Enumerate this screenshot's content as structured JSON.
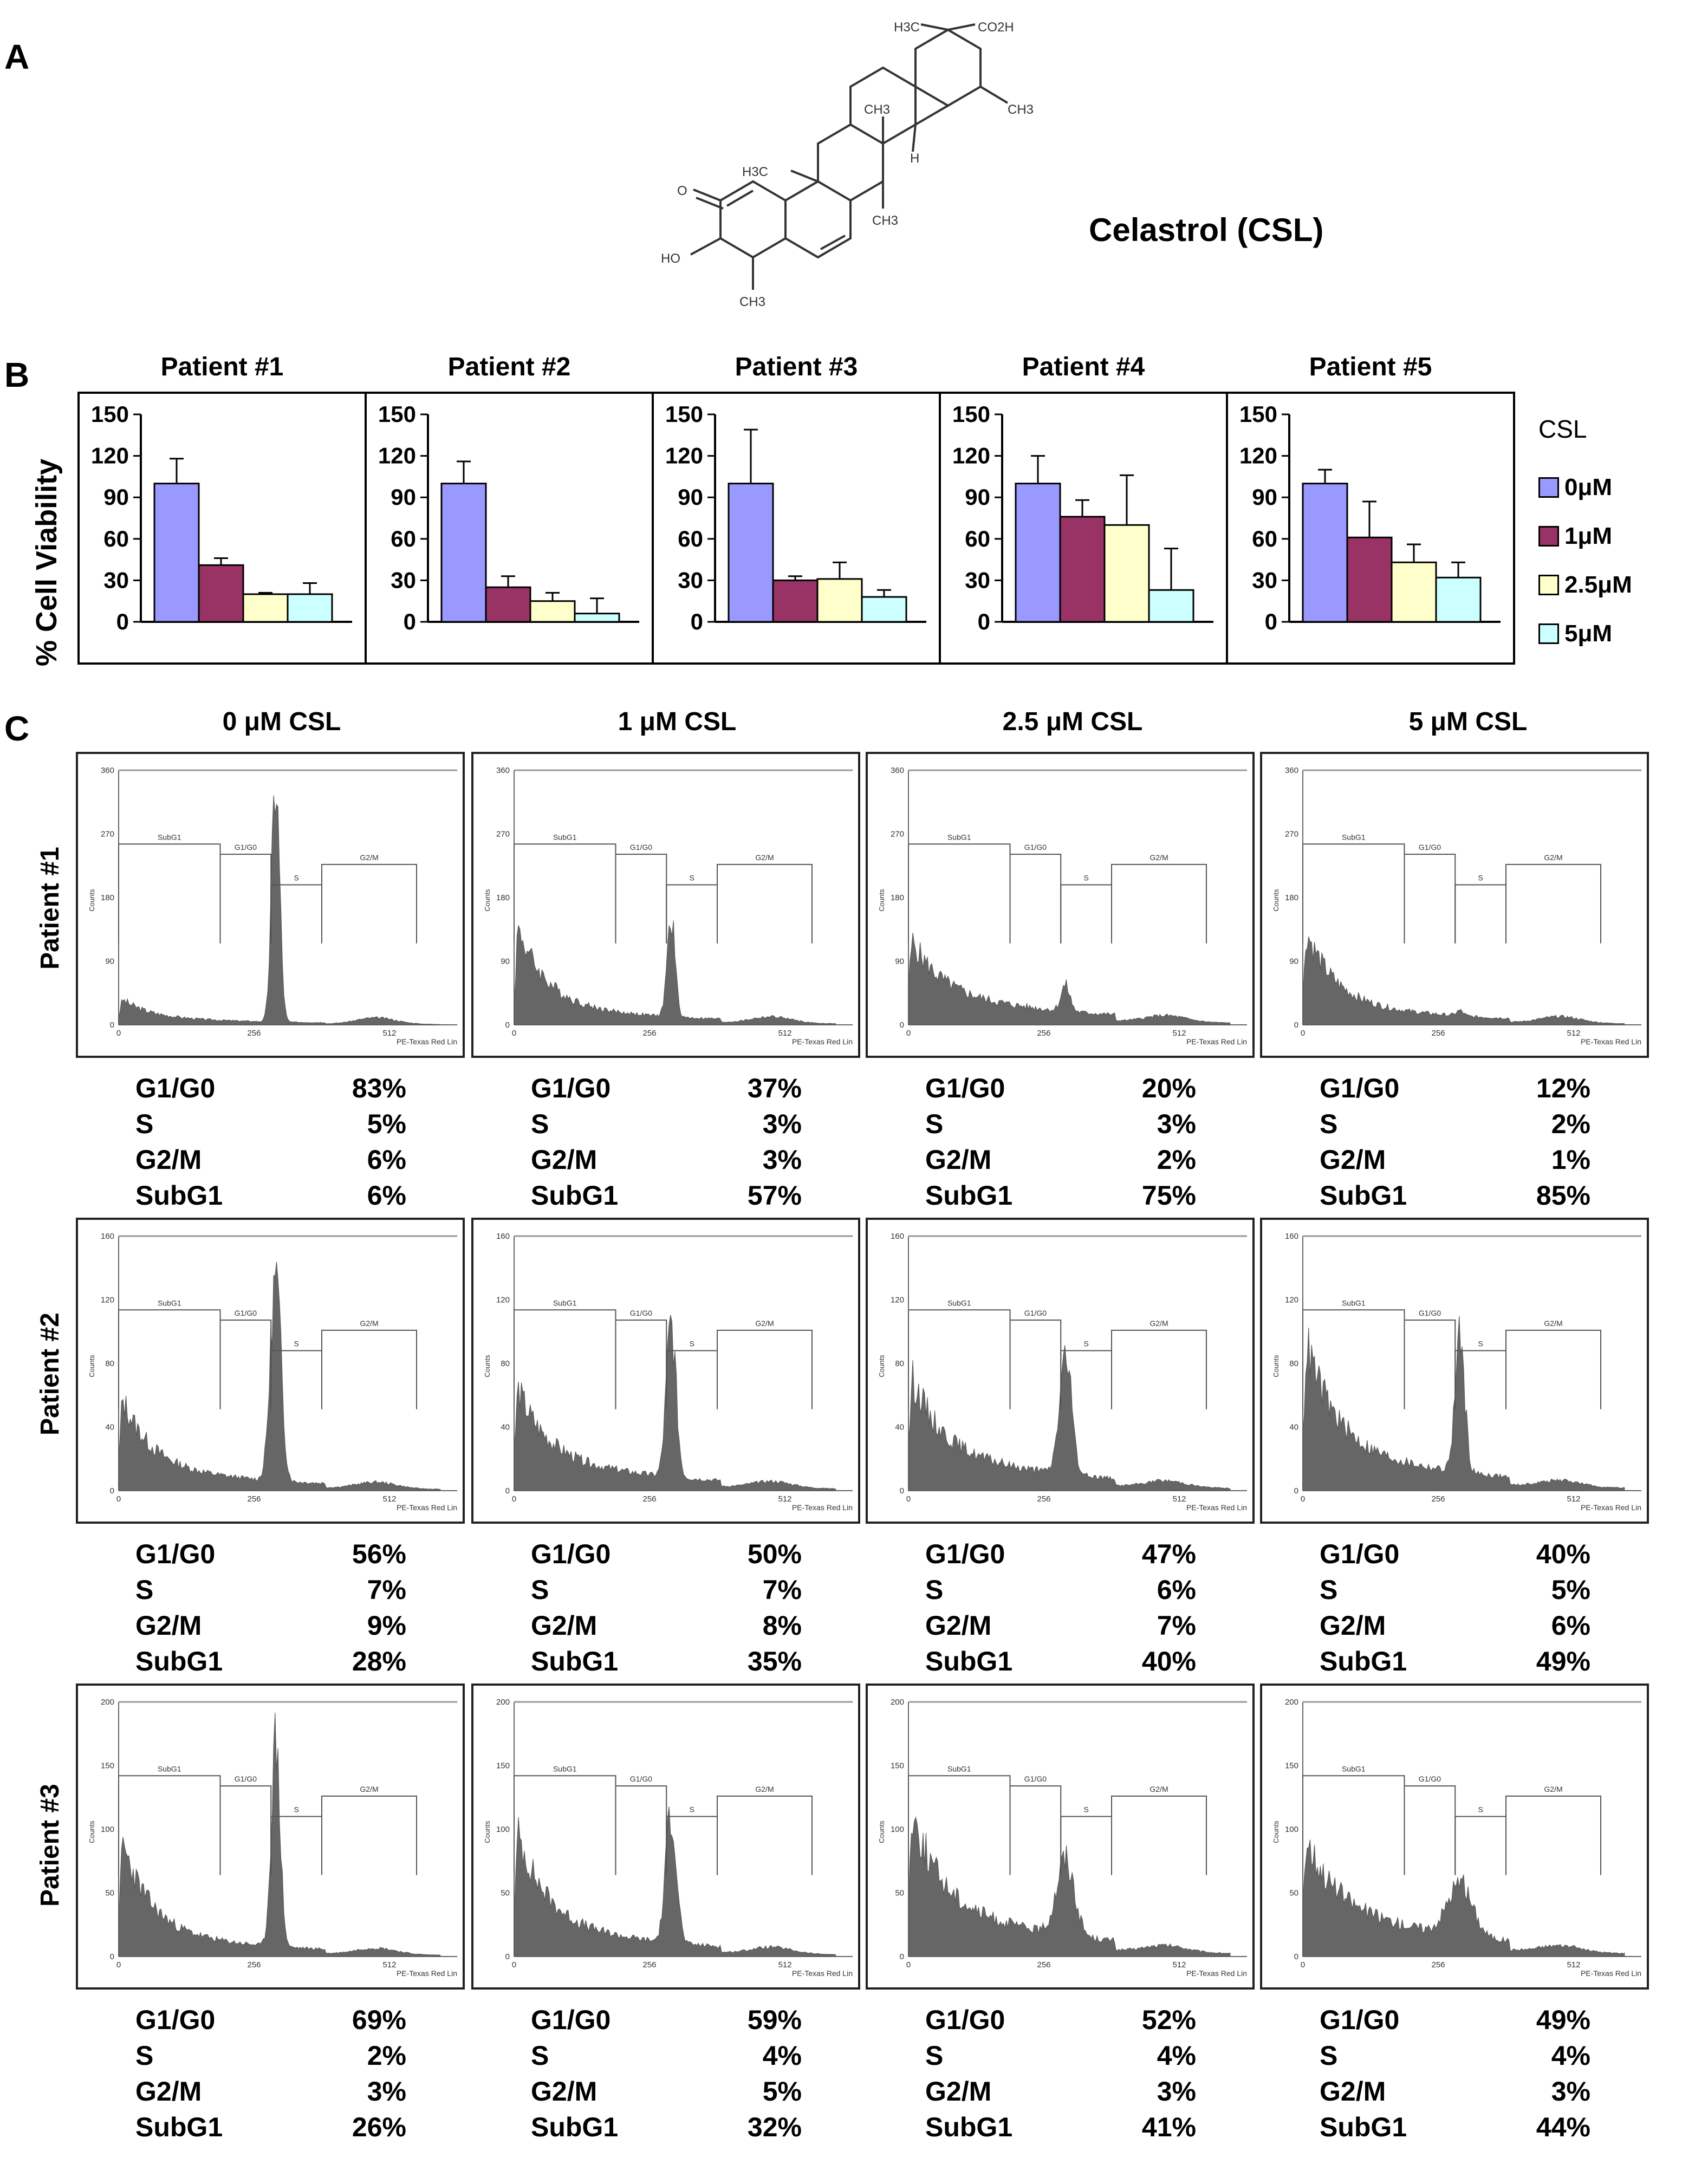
{
  "panels": {
    "a": "A",
    "b": "B",
    "c": "C"
  },
  "molecule": {
    "name": "Celastrol (CSL)",
    "labels": [
      "H3C",
      "CO2H",
      "CH3",
      "H3C",
      "H",
      "CH3",
      "O",
      "HO",
      "CH3",
      "CH3"
    ]
  },
  "viability": {
    "ylabel": "% Cell Viability",
    "legend_title": "CSL",
    "conditions": [
      "0μM",
      "1μM",
      "2.5μM",
      "5μM"
    ],
    "colors": [
      "#9999ff",
      "#993366",
      "#ffffcc",
      "#ccffff"
    ],
    "yticks": [
      "150",
      "120",
      "90",
      "60",
      "30",
      "0"
    ]
  },
  "chart_data": [
    {
      "type": "bar",
      "title": "Patient #1",
      "categories": [
        "0μM",
        "1μM",
        "2.5μM",
        "5μM"
      ],
      "values": [
        100,
        41,
        20,
        20
      ],
      "errors": [
        18,
        5,
        1,
        8
      ],
      "ylim": [
        0,
        150
      ],
      "ylabel": "% Cell Viability"
    },
    {
      "type": "bar",
      "title": "Patient #2",
      "categories": [
        "0μM",
        "1μM",
        "2.5μM",
        "5μM"
      ],
      "values": [
        100,
        25,
        15,
        6
      ],
      "errors": [
        16,
        8,
        6,
        11
      ],
      "ylim": [
        0,
        150
      ],
      "ylabel": "% Cell Viability"
    },
    {
      "type": "bar",
      "title": "Patient #3",
      "categories": [
        "0μM",
        "1μM",
        "2.5μM",
        "5μM"
      ],
      "values": [
        100,
        30,
        31,
        18
      ],
      "errors": [
        39,
        3,
        12,
        5
      ],
      "ylim": [
        0,
        150
      ],
      "ylabel": "% Cell Viability"
    },
    {
      "type": "bar",
      "title": "Patient #4",
      "categories": [
        "0μM",
        "1μM",
        "2.5μM",
        "5μM"
      ],
      "values": [
        100,
        76,
        70,
        23
      ],
      "errors": [
        20,
        12,
        36,
        30
      ],
      "ylim": [
        0,
        150
      ],
      "ylabel": "% Cell Viability"
    },
    {
      "type": "bar",
      "title": "Patient #5",
      "categories": [
        "0μM",
        "1μM",
        "2.5μM",
        "5μM"
      ],
      "values": [
        100,
        61,
        43,
        32
      ],
      "errors": [
        10,
        26,
        13,
        11
      ],
      "ylim": [
        0,
        150
      ],
      "ylabel": "% Cell Viability"
    }
  ],
  "cell_cycle": {
    "columns": [
      "0 μM CSL",
      "1 μM CSL",
      "2.5 μM CSL",
      "5 μM CSL"
    ],
    "axis": {
      "ylabel": "Counts",
      "xlabel": "PE-Texas Red Lin",
      "xticks": [
        "0",
        "256",
        "512"
      ],
      "gates": [
        "SubG1",
        "G1/G0",
        "S",
        "G2/M"
      ]
    },
    "patients": [
      {
        "label": "Patient #1",
        "yticks": [
          "360",
          "270",
          "180",
          "90",
          "0"
        ],
        "ymax": 360,
        "cells": [
          {
            "stats": [
              [
                "G1/G0",
                "83%"
              ],
              [
                "S",
                "5%"
              ],
              [
                "G2/M",
                "6%"
              ],
              [
                "SubG1",
                "6%"
              ]
            ]
          },
          {
            "stats": [
              [
                "G1/G0",
                "37%"
              ],
              [
                "S",
                "3%"
              ],
              [
                "G2/M",
                "3%"
              ],
              [
                "SubG1",
                "57%"
              ]
            ]
          },
          {
            "stats": [
              [
                "G1/G0",
                "20%"
              ],
              [
                "S",
                "3%"
              ],
              [
                "G2/M",
                "2%"
              ],
              [
                "SubG1",
                "75%"
              ]
            ]
          },
          {
            "stats": [
              [
                "G1/G0",
                "12%"
              ],
              [
                "S",
                "2%"
              ],
              [
                "G2/M",
                "1%"
              ],
              [
                "SubG1",
                "85%"
              ]
            ]
          }
        ]
      },
      {
        "label": "Patient #2",
        "yticks": [
          "160",
          "120",
          "80",
          "40",
          "0"
        ],
        "ymax": 160,
        "cells": [
          {
            "stats": [
              [
                "G1/G0",
                "56%"
              ],
              [
                "S",
                "7%"
              ],
              [
                "G2/M",
                "9%"
              ],
              [
                "SubG1",
                "28%"
              ]
            ]
          },
          {
            "stats": [
              [
                "G1/G0",
                "50%"
              ],
              [
                "S",
                "7%"
              ],
              [
                "G2/M",
                "8%"
              ],
              [
                "SubG1",
                "35%"
              ]
            ]
          },
          {
            "stats": [
              [
                "G1/G0",
                "47%"
              ],
              [
                "S",
                "6%"
              ],
              [
                "G2/M",
                "7%"
              ],
              [
                "SubG1",
                "40%"
              ]
            ]
          },
          {
            "stats": [
              [
                "G1/G0",
                "40%"
              ],
              [
                "S",
                "5%"
              ],
              [
                "G2/M",
                "6%"
              ],
              [
                "SubG1",
                "49%"
              ]
            ]
          }
        ]
      },
      {
        "label": "Patient #3",
        "yticks": [
          "200",
          "150",
          "100",
          "50",
          "0"
        ],
        "ymax": 200,
        "cells": [
          {
            "stats": [
              [
                "G1/G0",
                "69%"
              ],
              [
                "S",
                "2%"
              ],
              [
                "G2/M",
                "3%"
              ],
              [
                "SubG1",
                "26%"
              ]
            ]
          },
          {
            "stats": [
              [
                "G1/G0",
                "59%"
              ],
              [
                "S",
                "4%"
              ],
              [
                "G2/M",
                "5%"
              ],
              [
                "SubG1",
                "32%"
              ]
            ]
          },
          {
            "stats": [
              [
                "G1/G0",
                "52%"
              ],
              [
                "S",
                "4%"
              ],
              [
                "G2/M",
                "3%"
              ],
              [
                "SubG1",
                "41%"
              ]
            ]
          },
          {
            "stats": [
              [
                "G1/G0",
                "49%"
              ],
              [
                "S",
                "4%"
              ],
              [
                "G2/M",
                "3%"
              ],
              [
                "SubG1",
                "44%"
              ]
            ]
          }
        ]
      }
    ]
  }
}
